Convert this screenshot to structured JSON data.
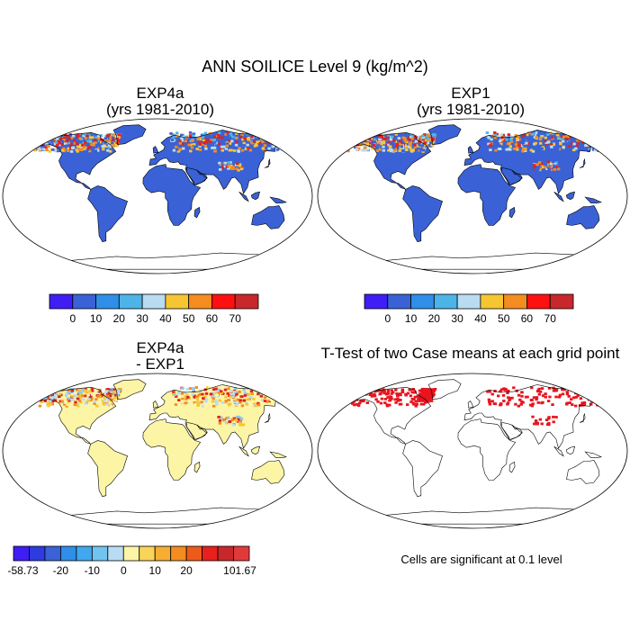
{
  "figure": {
    "title": "ANN SOILICE Level 9 (kg/m^2)"
  },
  "panels": [
    {
      "id": "exp4a",
      "title_line1": "EXP4a",
      "title_line2": "(yrs 1981-2010)",
      "field": "absolute",
      "ocean_color": "#ffffff",
      "land_color": "#3a62d6",
      "arctic_colors": [
        "#3a62d6",
        "#b9dcf2",
        "#f6c632",
        "#f48c20",
        "#e8201e",
        "#c8282c",
        "#4db4e8"
      ]
    },
    {
      "id": "exp1",
      "title_line1": "EXP1",
      "title_line2": "(yrs 1981-2010)",
      "field": "absolute",
      "ocean_color": "#ffffff",
      "land_color": "#3a62d6",
      "arctic_colors": [
        "#3a62d6",
        "#b9dcf2",
        "#f6c632",
        "#f48c20",
        "#e8201e",
        "#c8282c",
        "#4db4e8"
      ]
    },
    {
      "id": "diff",
      "title_line1": "EXP4a",
      "title_line2": "- EXP1",
      "field": "difference",
      "ocean_color": "#ffffff",
      "land_color": "#fdf5a6",
      "arctic_colors": [
        "#fdf5a6",
        "#b9dcf2",
        "#f6c632",
        "#f48c20",
        "#e8201e",
        "#c8282c",
        "#8ec8ec"
      ]
    },
    {
      "id": "ttest",
      "title_line1": "T-Test of two Case means at each grid point",
      "title_line2": "",
      "field": "significance",
      "ocean_color": "#ffffff",
      "land_color": "#ffffff",
      "sig_color": "#e8141e"
    }
  ],
  "colorbars": [
    {
      "id": "cbar-exp4a",
      "colors": [
        "#3f1ef5",
        "#3a62d6",
        "#2f8ee8",
        "#4db4e8",
        "#b9dcf2",
        "#f6c632",
        "#f48c20",
        "#ff1010",
        "#c8282c"
      ],
      "labels": [
        "0",
        "10",
        "20",
        "30",
        "40",
        "50",
        "60",
        "70"
      ]
    },
    {
      "id": "cbar-exp1",
      "colors": [
        "#3f1ef5",
        "#3a62d6",
        "#2f8ee8",
        "#4db4e8",
        "#b9dcf2",
        "#f6c632",
        "#f48c20",
        "#ff1010",
        "#c8282c"
      ],
      "labels": [
        "0",
        "10",
        "20",
        "30",
        "40",
        "50",
        "60",
        "70"
      ]
    },
    {
      "id": "cbar-diff",
      "colors": [
        "#3f1ef5",
        "#2d3be0",
        "#3a62d6",
        "#2f8ee8",
        "#3fa8ef",
        "#72c4f0",
        "#b9dcf2",
        "#fdf5a6",
        "#fad45a",
        "#f6ad30",
        "#f48c20",
        "#ee5a1c",
        "#e8201e",
        "#c8282c",
        "#e23a3a"
      ],
      "labels": [
        "-58.73",
        "-20",
        "-10",
        "0",
        "10",
        "20",
        "101.67"
      ]
    }
  ],
  "footnote": "Cells are significant at 0.1 level"
}
